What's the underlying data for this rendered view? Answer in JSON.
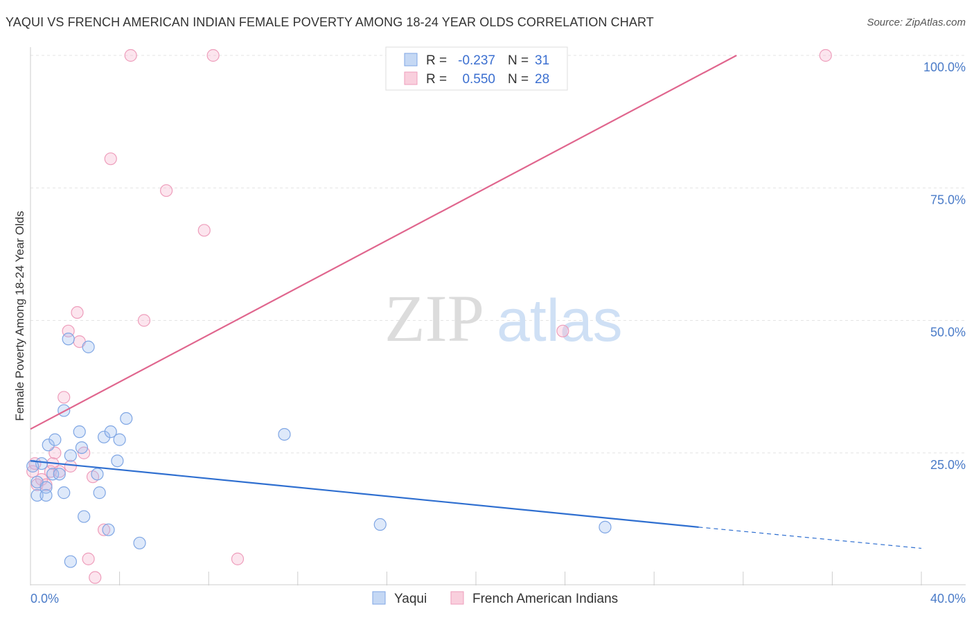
{
  "title": "YAQUI VS FRENCH AMERICAN INDIAN FEMALE POVERTY AMONG 18-24 YEAR OLDS CORRELATION CHART",
  "source": "Source: ZipAtlas.com",
  "watermark": {
    "zip": "ZIP",
    "atlas": "atlas"
  },
  "legend": {
    "r_label": "R =",
    "n_label": "N =",
    "rows": [
      {
        "r": "-0.237",
        "n": "31"
      },
      {
        "r": "0.550",
        "n": "28"
      }
    ]
  },
  "chart_data": {
    "type": "scatter",
    "title": "YAQUI VS FRENCH AMERICAN INDIAN FEMALE POVERTY AMONG 18-24 YEAR OLDS CORRELATION CHART",
    "xlabel": "",
    "ylabel": "Female Poverty Among 18-24 Year Olds",
    "xlim": [
      0,
      40
    ],
    "ylim": [
      0,
      100
    ],
    "x_tick_labels": [
      "0.0%",
      "40.0%"
    ],
    "y_ticks": [
      25,
      50,
      75,
      100
    ],
    "y_tick_labels": [
      "25.0%",
      "50.0%",
      "75.0%",
      "100.0%"
    ],
    "colors": {
      "yaqui": "#6f9be0",
      "french": "#ec8fb0",
      "yaqui_line": "#2f6fd0",
      "french_line": "#e0668e"
    },
    "series": [
      {
        "name": "Yaqui",
        "r": -0.237,
        "n": 31,
        "trend": {
          "x0": 0,
          "y0": 23.5,
          "x1": 30,
          "y1": 11,
          "dash_to_x": 40,
          "dash_to_y": 7
        },
        "points": [
          [
            0.3,
            19.5
          ],
          [
            0.3,
            17
          ],
          [
            0.5,
            23
          ],
          [
            0.7,
            18.5
          ],
          [
            0.7,
            17
          ],
          [
            0.8,
            26.5
          ],
          [
            1.0,
            21
          ],
          [
            1.1,
            27.5
          ],
          [
            1.3,
            21
          ],
          [
            1.5,
            33
          ],
          [
            1.5,
            17.5
          ],
          [
            1.7,
            46.5
          ],
          [
            1.8,
            4.5
          ],
          [
            1.8,
            24.5
          ],
          [
            2.2,
            29
          ],
          [
            2.3,
            26
          ],
          [
            2.4,
            13
          ],
          [
            2.6,
            45
          ],
          [
            3.0,
            21
          ],
          [
            3.1,
            17.5
          ],
          [
            3.3,
            28
          ],
          [
            3.5,
            10.5
          ],
          [
            3.6,
            29
          ],
          [
            3.9,
            23.5
          ],
          [
            4.0,
            27.5
          ],
          [
            4.3,
            31.5
          ],
          [
            4.9,
            8
          ],
          [
            11.4,
            28.5
          ],
          [
            15.7,
            11.5
          ],
          [
            25.8,
            11
          ],
          [
            0.1,
            22.5
          ]
        ]
      },
      {
        "name": "French American Indians",
        "r": 0.55,
        "n": 28,
        "trend": {
          "x0": 0,
          "y0": 29.5,
          "x1": 31.7,
          "y1": 100
        },
        "points": [
          [
            0.1,
            21.5
          ],
          [
            0.3,
            19
          ],
          [
            0.5,
            20
          ],
          [
            0.7,
            19
          ],
          [
            0.9,
            21.5
          ],
          [
            1.0,
            23
          ],
          [
            1.1,
            25
          ],
          [
            1.3,
            21.5
          ],
          [
            1.5,
            35.5
          ],
          [
            1.7,
            48
          ],
          [
            1.8,
            22.5
          ],
          [
            2.1,
            51.5
          ],
          [
            2.2,
            46
          ],
          [
            2.4,
            25
          ],
          [
            2.6,
            5
          ],
          [
            2.8,
            20.5
          ],
          [
            2.9,
            1.5
          ],
          [
            3.3,
            10.5
          ],
          [
            3.6,
            80.5
          ],
          [
            4.5,
            100
          ],
          [
            5.1,
            50
          ],
          [
            6.1,
            74.5
          ],
          [
            7.8,
            67
          ],
          [
            8.2,
            100
          ],
          [
            9.3,
            5
          ],
          [
            23.9,
            48
          ],
          [
            35.7,
            100
          ],
          [
            0.2,
            23
          ]
        ]
      }
    ]
  }
}
